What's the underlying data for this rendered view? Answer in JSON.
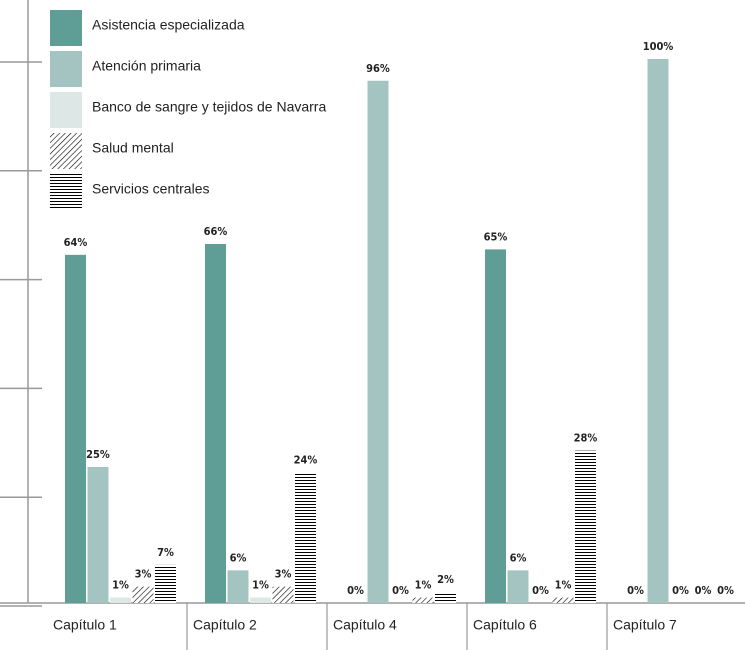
{
  "chart_data": {
    "type": "bar",
    "categories": [
      "Capítulo 1",
      "Capítulo 2",
      "Capítulo 4",
      "Capítulo 6",
      "Capítulo 7"
    ],
    "series": [
      {
        "name": "Asistencia especializada",
        "color": "#5e9e96",
        "values": [
          64,
          66,
          0,
          65,
          0
        ],
        "value_labels": [
          "64%",
          "66%",
          "0%",
          "65%",
          "0%"
        ]
      },
      {
        "name": "Atención primaria",
        "color": "#a3c4c0",
        "values": [
          25,
          6,
          96,
          6,
          100
        ],
        "value_labels": [
          "25%",
          "6%",
          "96%",
          "6%",
          "100%"
        ]
      },
      {
        "name": "Banco de sangre y tejidos de Navarra",
        "color": "#dde7e5",
        "values": [
          1,
          1,
          0,
          0,
          0
        ],
        "value_labels": [
          "1%",
          "1%",
          "0%",
          "0%",
          "0%"
        ]
      },
      {
        "name": "Salud mental",
        "color": "#a3c4c0",
        "hatch": "diagonal",
        "values": [
          3,
          3,
          1,
          1,
          0
        ],
        "value_labels": [
          "3%",
          "3%",
          "1%",
          "1%",
          "0%"
        ]
      },
      {
        "name": "Servicios centrales",
        "color": "#a3c4c0",
        "hatch": "horizontal",
        "values": [
          7,
          24,
          2,
          28,
          0
        ],
        "value_labels": [
          "7%",
          "24%",
          "2%",
          "28%",
          "0%"
        ]
      }
    ],
    "ylim": [
      0,
      100
    ],
    "yticks": [
      0,
      20,
      40,
      60,
      80,
      100
    ],
    "grid": true,
    "legend": "top-left"
  }
}
